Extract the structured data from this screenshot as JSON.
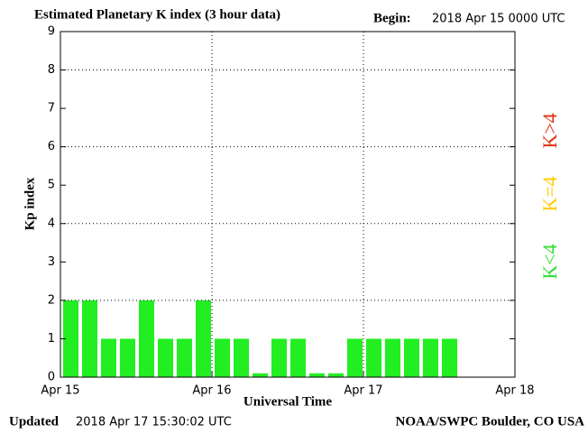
{
  "chart_data": {
    "type": "bar",
    "title": "Estimated Planetary K index (3 hour data)",
    "begin_label": "Begin:",
    "begin": "2018 Apr 15 0000 UTC",
    "y_label": "Kp index",
    "x_label": "Universal Time",
    "updated_label": "Updated",
    "updated": "2018 Apr 17 15:30:02 UTC",
    "credit": "NOAA/SWPC Boulder, CO USA",
    "x": [
      0,
      3,
      6,
      9,
      12,
      15,
      18,
      21,
      24,
      27,
      30,
      33,
      36,
      39,
      42,
      45,
      48,
      51,
      54,
      57,
      60
    ],
    "values": [
      2,
      2,
      1,
      1,
      2,
      1,
      1,
      2,
      1,
      1,
      0.1,
      1,
      1,
      0.1,
      0.1,
      1,
      1,
      1,
      1,
      1,
      1
    ],
    "color": "#22ee22",
    "xlim": [
      0,
      72
    ],
    "xticks": [
      {
        "value": 0,
        "label": "Apr 15"
      },
      {
        "value": 24,
        "label": "Apr 16"
      },
      {
        "value": 48,
        "label": "Apr 17"
      },
      {
        "value": 72,
        "label": "Apr 18"
      }
    ],
    "ylim": [
      0,
      9
    ],
    "yticks": [
      0,
      1,
      2,
      3,
      4,
      5,
      6,
      7,
      8,
      9
    ],
    "grid": true,
    "legend": [
      {
        "label": "K<4",
        "color": "#33dd33"
      },
      {
        "label": "K=4",
        "color": "#ffcc00"
      },
      {
        "label": "K>4",
        "color": "#dd3311"
      }
    ]
  }
}
